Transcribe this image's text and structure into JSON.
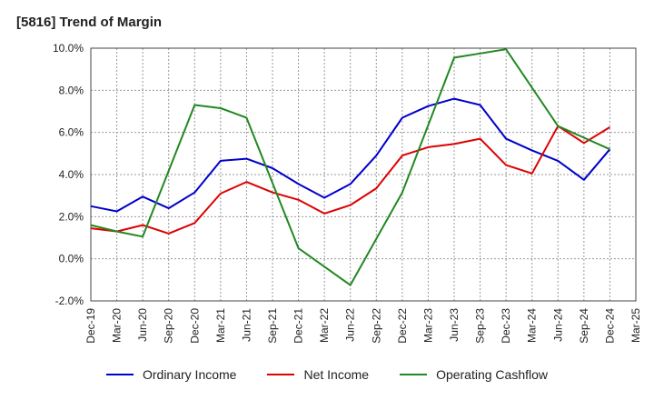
{
  "chart_data": {
    "type": "line",
    "title": "[5816]  Trend of Margin",
    "x": [
      "Dec-19",
      "Mar-20",
      "Jun-20",
      "Sep-20",
      "Dec-20",
      "Mar-21",
      "Jun-21",
      "Sep-21",
      "Dec-21",
      "Mar-22",
      "Jun-22",
      "Sep-22",
      "Dec-22",
      "Mar-23",
      "Jun-23",
      "Sep-23",
      "Dec-23",
      "Mar-24",
      "Jun-24",
      "Sep-24",
      "Dec-24",
      "Mar-25"
    ],
    "ylim": [
      -2.0,
      10.0
    ],
    "yticks": [
      -2.0,
      0.0,
      2.0,
      4.0,
      6.0,
      8.0,
      10.0
    ],
    "ytick_labels": [
      "-2.0%",
      "0.0%",
      "2.0%",
      "4.0%",
      "6.0%",
      "8.0%",
      "10.0%"
    ],
    "grid": true,
    "legend_position": "bottom",
    "series": [
      {
        "name": "Ordinary Income",
        "color": "#0000cc",
        "values": [
          2.5,
          2.25,
          2.95,
          2.4,
          3.15,
          4.65,
          4.75,
          4.3,
          3.55,
          2.9,
          3.55,
          4.9,
          6.7,
          7.25,
          7.6,
          7.3,
          5.7,
          5.15,
          4.65,
          3.75,
          5.2,
          null
        ]
      },
      {
        "name": "Net Income",
        "color": "#dd0000",
        "values": [
          1.45,
          1.3,
          1.6,
          1.2,
          1.7,
          3.1,
          3.65,
          3.15,
          2.8,
          2.15,
          2.55,
          3.35,
          4.9,
          5.3,
          5.45,
          5.7,
          4.45,
          4.05,
          6.3,
          5.5,
          6.25,
          null
        ]
      },
      {
        "name": "Operating Cashflow",
        "color": "#228822",
        "values": [
          1.6,
          1.3,
          1.05,
          null,
          7.3,
          7.15,
          6.7,
          null,
          0.5,
          null,
          -1.25,
          null,
          3.15,
          null,
          9.55,
          null,
          9.95,
          null,
          6.3,
          null,
          5.2,
          null
        ]
      }
    ]
  }
}
